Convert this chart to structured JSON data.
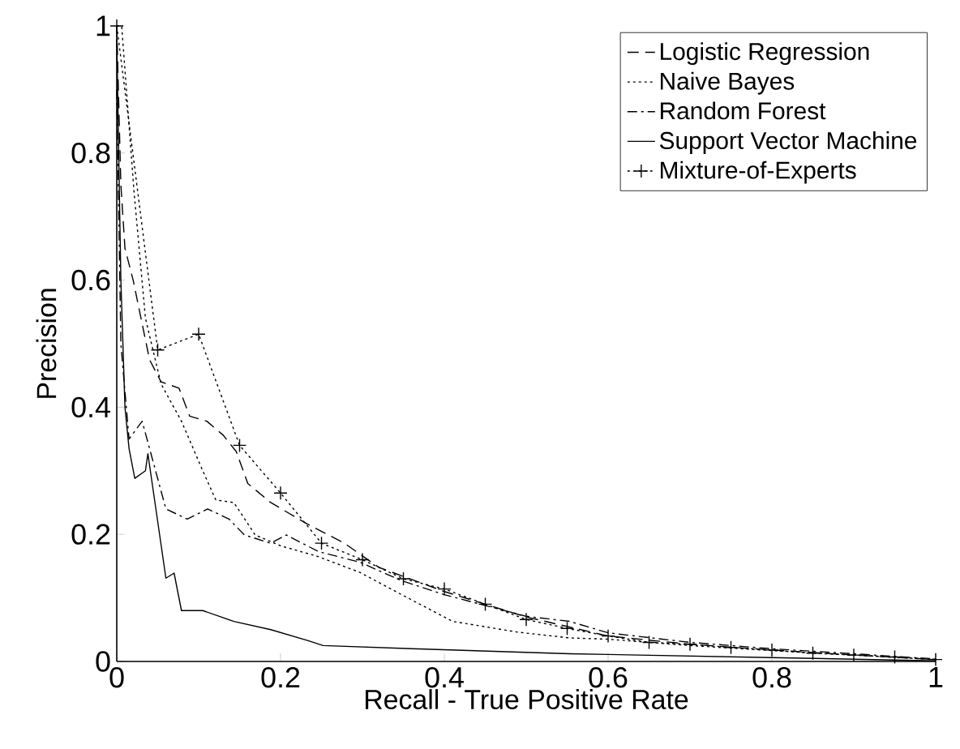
{
  "chart_data": {
    "type": "line",
    "xlabel": "Recall - True Positive Rate",
    "ylabel": "Precision",
    "xlim": [
      0,
      1
    ],
    "ylim": [
      0,
      1
    ],
    "xticks": [
      0,
      0.2,
      0.4,
      0.6,
      0.8,
      1
    ],
    "yticks": [
      0,
      0.2,
      0.4,
      0.6,
      0.8,
      1
    ],
    "grid": false,
    "legend": "top right",
    "marker": "none",
    "series": [
      {
        "name": "Logistic Regression",
        "color": "#000000",
        "line_style": "dashed",
        "x": [
          0,
          0.005,
          0.01,
          0.02,
          0.04,
          0.054,
          0.076,
          0.089,
          0.11,
          0.13,
          0.146,
          0.16,
          0.188,
          0.233,
          0.278,
          0.32,
          0.4,
          0.5,
          0.6,
          0.7,
          0.8,
          0.9,
          1
        ],
        "values": [
          1,
          0.75,
          0.65,
          0.6,
          0.475,
          0.44,
          0.43,
          0.386,
          0.378,
          0.356,
          0.33,
          0.28,
          0.25,
          0.216,
          0.186,
          0.148,
          0.11,
          0.07,
          0.04,
          0.027,
          0.018,
          0.01,
          0.003
        ]
      },
      {
        "name": "Naive Bayes",
        "color": "#000000",
        "line_style": "dotted",
        "x": [
          0,
          0.006,
          0.021,
          0.035,
          0.054,
          0.079,
          0.105,
          0.121,
          0.143,
          0.169,
          0.2,
          0.246,
          0.297,
          0.348,
          0.41,
          0.49,
          0.553,
          0.6,
          0.7,
          0.8,
          0.9,
          1
        ],
        "values": [
          1,
          1,
          0.74,
          0.54,
          0.437,
          0.378,
          0.3,
          0.254,
          0.25,
          0.199,
          0.182,
          0.165,
          0.14,
          0.105,
          0.063,
          0.046,
          0.037,
          0.035,
          0.025,
          0.017,
          0.01,
          0.003
        ]
      },
      {
        "name": "Random Forest",
        "color": "#000000",
        "line_style": "dashdot",
        "x": [
          0,
          0.005,
          0.015,
          0.031,
          0.06,
          0.086,
          0.111,
          0.137,
          0.156,
          0.188,
          0.207,
          0.246,
          0.297,
          0.348,
          0.4,
          0.5,
          0.553,
          0.6,
          0.7,
          0.8,
          0.9,
          1
        ],
        "values": [
          0.9,
          0.5,
          0.35,
          0.378,
          0.24,
          0.224,
          0.24,
          0.224,
          0.199,
          0.186,
          0.199,
          0.173,
          0.156,
          0.127,
          0.105,
          0.071,
          0.063,
          0.045,
          0.03,
          0.02,
          0.012,
          0.004
        ]
      },
      {
        "name": "Support Vector Machine",
        "color": "#000000",
        "line_style": "solid",
        "x": [
          0,
          0.005,
          0.01,
          0.015,
          0.022,
          0.035,
          0.038,
          0.041,
          0.06,
          0.07,
          0.079,
          0.105,
          0.143,
          0.188,
          0.233,
          0.252,
          0.36,
          0.553,
          0.6,
          0.8,
          1
        ],
        "values": [
          0.98,
          0.6,
          0.4,
          0.335,
          0.288,
          0.3,
          0.327,
          0.3,
          0.131,
          0.139,
          0.08,
          0.08,
          0.063,
          0.05,
          0.033,
          0.025,
          0.02,
          0.012,
          0.011,
          0.006,
          0.001
        ]
      },
      {
        "name": "Mixture-of-Experts",
        "color": "#000000",
        "line_style": "dotted",
        "marker": "cross",
        "x": [
          0,
          0.05,
          0.1,
          0.15,
          0.2,
          0.25,
          0.3,
          0.35,
          0.4,
          0.45,
          0.5,
          0.55,
          0.6,
          0.65,
          0.7,
          0.75,
          0.8,
          0.85,
          0.9,
          0.95,
          1
        ],
        "values": [
          1,
          0.49,
          0.515,
          0.34,
          0.265,
          0.186,
          0.16,
          0.13,
          0.114,
          0.09,
          0.066,
          0.052,
          0.04,
          0.03,
          0.027,
          0.022,
          0.018,
          0.013,
          0.01,
          0.007,
          0.003
        ]
      }
    ]
  }
}
